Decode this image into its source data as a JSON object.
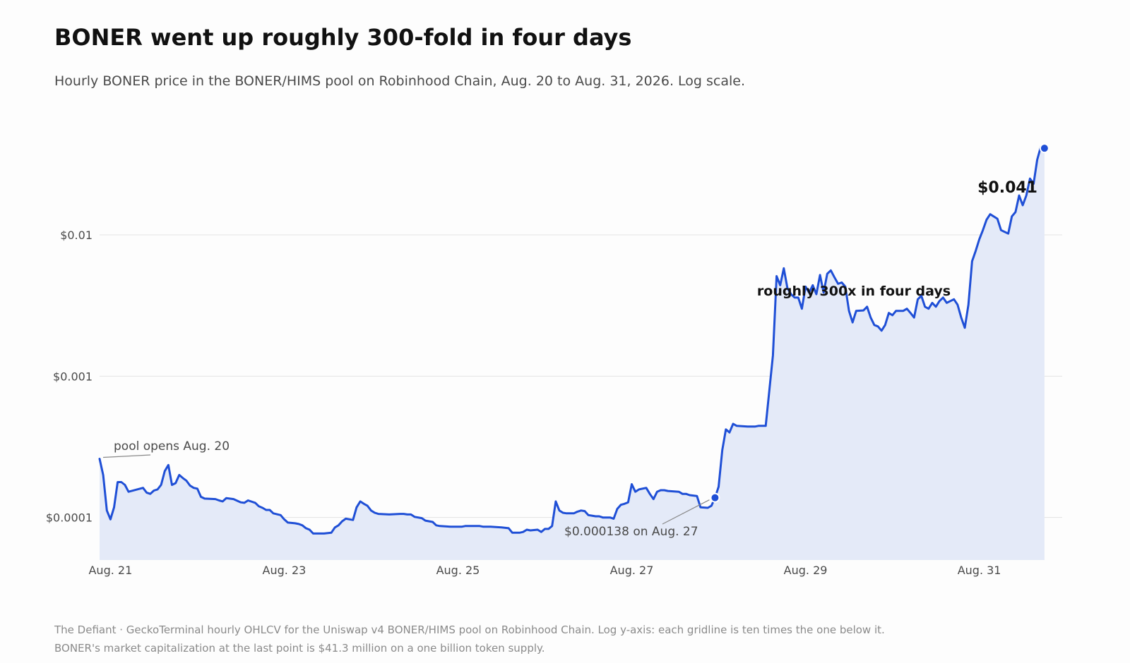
{
  "header": {
    "title": "BONER went up roughly 300-fold in four days",
    "subtitle": "Hourly BONER price in the BONER/HIMS pool on Robinhood Chain, Aug. 20 to Aug. 31, 2026. Log scale."
  },
  "footer": {
    "line1": "The Defiant · GeckoTerminal hourly OHLCV for the Uniswap v4 BONER/HIMS pool on Robinhood Chain. Log y-axis: each gridline is ten times the one below it.",
    "line2": "BONER's market capitalization at the last point is $41.3 million on a one billion token supply."
  },
  "colors": {
    "line": "#1f4fd6",
    "area": "#e4eaf8",
    "grid": "#e3e3e3",
    "annotation_line": "#888888"
  },
  "chart_data": {
    "type": "line",
    "title": "BONER went up roughly 300-fold in four days",
    "xlabel": "",
    "ylabel": "",
    "y_scale": "log",
    "grid": true,
    "area_fill": true,
    "legend": "none",
    "xlim": [
      "2026-08-20T21:00",
      "2026-08-31T19:00"
    ],
    "ylim": [
      5e-05,
      0.08
    ],
    "y_ticks": [
      {
        "value": 0.0001,
        "label": "$0.0001"
      },
      {
        "value": 0.001,
        "label": "$0.001"
      },
      {
        "value": 0.01,
        "label": "$0.01"
      }
    ],
    "x_ticks": [
      {
        "value": "2026-08-21T00:00",
        "label": "Aug. 21"
      },
      {
        "value": "2026-08-23T00:00",
        "label": "Aug. 23"
      },
      {
        "value": "2026-08-25T00:00",
        "label": "Aug. 25"
      },
      {
        "value": "2026-08-27T00:00",
        "label": "Aug. 27"
      },
      {
        "value": "2026-08-29T00:00",
        "label": "Aug. 29"
      },
      {
        "value": "2026-08-31T00:00",
        "label": "Aug. 31"
      }
    ],
    "series": [
      {
        "points": [
          [
            "2026-08-20T21:00",
            0.00026
          ],
          [
            "2026-08-20T22:00",
            0.0002
          ],
          [
            "2026-08-20T23:00",
            0.000112
          ],
          [
            "2026-08-21T00:00",
            9.7e-05
          ],
          [
            "2026-08-21T01:00",
            0.000118
          ],
          [
            "2026-08-21T02:00",
            0.000178
          ],
          [
            "2026-08-21T03:00",
            0.000178
          ],
          [
            "2026-08-21T04:00",
            0.00017
          ],
          [
            "2026-08-21T05:00",
            0.000152
          ],
          [
            "2026-08-21T07:00",
            0.000157
          ],
          [
            "2026-08-21T09:00",
            0.000162
          ],
          [
            "2026-08-21T10:00",
            0.00015
          ],
          [
            "2026-08-21T11:00",
            0.000147
          ],
          [
            "2026-08-21T12:00",
            0.000155
          ],
          [
            "2026-08-21T13:00",
            0.000158
          ],
          [
            "2026-08-21T14:00",
            0.00017
          ],
          [
            "2026-08-21T15:00",
            0.000213
          ],
          [
            "2026-08-21T16:00",
            0.000235
          ],
          [
            "2026-08-21T17:00",
            0.00017
          ],
          [
            "2026-08-21T18:00",
            0.000175
          ],
          [
            "2026-08-21T19:00",
            0.0002
          ],
          [
            "2026-08-21T20:00",
            0.00019
          ],
          [
            "2026-08-21T21:00",
            0.000182
          ],
          [
            "2026-08-21T22:00",
            0.000168
          ],
          [
            "2026-08-21T23:00",
            0.000162
          ],
          [
            "2026-08-22T00:00",
            0.00016
          ],
          [
            "2026-08-22T01:00",
            0.00014
          ],
          [
            "2026-08-22T02:00",
            0.000136
          ],
          [
            "2026-08-22T05:00",
            0.000135
          ],
          [
            "2026-08-22T06:00",
            0.000132
          ],
          [
            "2026-08-22T07:00",
            0.00013
          ],
          [
            "2026-08-22T08:00",
            0.000137
          ],
          [
            "2026-08-22T10:00",
            0.000135
          ],
          [
            "2026-08-22T12:00",
            0.000128
          ],
          [
            "2026-08-22T13:00",
            0.000127
          ],
          [
            "2026-08-22T14:00",
            0.000132
          ],
          [
            "2026-08-22T16:00",
            0.000127
          ],
          [
            "2026-08-22T17:00",
            0.00012
          ],
          [
            "2026-08-22T18:00",
            0.000117
          ],
          [
            "2026-08-22T19:00",
            0.000113
          ],
          [
            "2026-08-22T20:00",
            0.000113
          ],
          [
            "2026-08-22T21:00",
            0.000107
          ],
          [
            "2026-08-22T23:00",
            0.000104
          ],
          [
            "2026-08-23T00:00",
            9.7e-05
          ],
          [
            "2026-08-23T01:00",
            9.2e-05
          ],
          [
            "2026-08-23T03:00",
            9.1e-05
          ],
          [
            "2026-08-23T04:00",
            9e-05
          ],
          [
            "2026-08-23T05:00",
            8.8e-05
          ],
          [
            "2026-08-23T06:00",
            8.4e-05
          ],
          [
            "2026-08-23T07:00",
            8.2e-05
          ],
          [
            "2026-08-23T08:00",
            7.7e-05
          ],
          [
            "2026-08-23T11:00",
            7.7e-05
          ],
          [
            "2026-08-23T13:00",
            7.8e-05
          ],
          [
            "2026-08-23T14:00",
            8.5e-05
          ],
          [
            "2026-08-23T15:00",
            8.8e-05
          ],
          [
            "2026-08-23T16:00",
            9.4e-05
          ],
          [
            "2026-08-23T17:00",
            9.8e-05
          ],
          [
            "2026-08-23T19:00",
            9.6e-05
          ],
          [
            "2026-08-23T20:00",
            0.000118
          ],
          [
            "2026-08-23T21:00",
            0.00013
          ],
          [
            "2026-08-23T22:00",
            0.000125
          ],
          [
            "2026-08-23T23:00",
            0.000121
          ],
          [
            "2026-08-24T00:00",
            0.000112
          ],
          [
            "2026-08-24T01:00",
            0.000108
          ],
          [
            "2026-08-24T02:00",
            0.000106
          ],
          [
            "2026-08-24T05:00",
            0.000105
          ],
          [
            "2026-08-24T08:00",
            0.000106
          ],
          [
            "2026-08-24T09:00",
            0.000106
          ],
          [
            "2026-08-24T10:00",
            0.000105
          ],
          [
            "2026-08-24T11:00",
            0.000105
          ],
          [
            "2026-08-24T12:00",
            0.000101
          ],
          [
            "2026-08-24T14:00",
            9.9e-05
          ],
          [
            "2026-08-24T15:00",
            9.5e-05
          ],
          [
            "2026-08-24T17:00",
            9.3e-05
          ],
          [
            "2026-08-24T18:00",
            8.8e-05
          ],
          [
            "2026-08-24T19:00",
            8.7e-05
          ],
          [
            "2026-08-24T22:00",
            8.6e-05
          ],
          [
            "2026-08-25T01:00",
            8.6e-05
          ],
          [
            "2026-08-25T02:00",
            8.7e-05
          ],
          [
            "2026-08-25T03:00",
            8.7e-05
          ],
          [
            "2026-08-25T06:00",
            8.7e-05
          ],
          [
            "2026-08-25T07:00",
            8.6e-05
          ],
          [
            "2026-08-25T09:00",
            8.6e-05
          ],
          [
            "2026-08-25T12:00",
            8.5e-05
          ],
          [
            "2026-08-25T14:00",
            8.4e-05
          ],
          [
            "2026-08-25T15:00",
            7.8e-05
          ],
          [
            "2026-08-25T17:00",
            7.8e-05
          ],
          [
            "2026-08-25T18:00",
            7.9e-05
          ],
          [
            "2026-08-25T19:00",
            8.2e-05
          ],
          [
            "2026-08-25T20:00",
            8.1e-05
          ],
          [
            "2026-08-25T22:00",
            8.2e-05
          ],
          [
            "2026-08-25T23:00",
            7.9e-05
          ],
          [
            "2026-08-26T00:00",
            8.3e-05
          ],
          [
            "2026-08-26T01:00",
            8.3e-05
          ],
          [
            "2026-08-26T02:00",
            8.7e-05
          ],
          [
            "2026-08-26T03:00",
            0.00013
          ],
          [
            "2026-08-26T04:00",
            0.000112
          ],
          [
            "2026-08-26T05:00",
            0.000108
          ],
          [
            "2026-08-26T06:00",
            0.000107
          ],
          [
            "2026-08-26T08:00",
            0.000107
          ],
          [
            "2026-08-26T09:00",
            0.00011
          ],
          [
            "2026-08-26T10:00",
            0.000112
          ],
          [
            "2026-08-26T11:00",
            0.000111
          ],
          [
            "2026-08-26T12:00",
            0.000104
          ],
          [
            "2026-08-26T13:00",
            0.000103
          ],
          [
            "2026-08-26T14:00",
            0.000102
          ],
          [
            "2026-08-26T15:00",
            0.000102
          ],
          [
            "2026-08-26T16:00",
            0.0001
          ],
          [
            "2026-08-26T18:00",
            0.0001
          ],
          [
            "2026-08-26T19:00",
            9.8e-05
          ],
          [
            "2026-08-26T20:00",
            0.000115
          ],
          [
            "2026-08-26T21:00",
            0.000123
          ],
          [
            "2026-08-26T22:00",
            0.000125
          ],
          [
            "2026-08-26T23:00",
            0.000128
          ],
          [
            "2026-08-27T00:00",
            0.000172
          ],
          [
            "2026-08-27T01:00",
            0.000152
          ],
          [
            "2026-08-27T02:00",
            0.000158
          ],
          [
            "2026-08-27T04:00",
            0.000162
          ],
          [
            "2026-08-27T05:00",
            0.000147
          ],
          [
            "2026-08-27T06:00",
            0.000135
          ],
          [
            "2026-08-27T07:00",
            0.000152
          ],
          [
            "2026-08-27T08:00",
            0.000156
          ],
          [
            "2026-08-27T09:00",
            0.000156
          ],
          [
            "2026-08-27T10:00",
            0.000154
          ],
          [
            "2026-08-27T13:00",
            0.000152
          ],
          [
            "2026-08-27T14:00",
            0.000147
          ],
          [
            "2026-08-27T15:00",
            0.000147
          ],
          [
            "2026-08-27T16:00",
            0.000144
          ],
          [
            "2026-08-27T18:00",
            0.000142
          ],
          [
            "2026-08-27T19:00",
            0.000118
          ],
          [
            "2026-08-27T21:00",
            0.000117
          ],
          [
            "2026-08-27T22:00",
            0.000121
          ],
          [
            "2026-08-27T23:00",
            0.000138
          ],
          [
            "2026-08-28T00:00",
            0.000165
          ],
          [
            "2026-08-28T01:00",
            0.0003
          ],
          [
            "2026-08-28T02:00",
            0.00042
          ],
          [
            "2026-08-28T03:00",
            0.0004
          ],
          [
            "2026-08-28T04:00",
            0.00046
          ],
          [
            "2026-08-28T05:00",
            0.000445
          ],
          [
            "2026-08-28T08:00",
            0.00044
          ],
          [
            "2026-08-28T10:00",
            0.00044
          ],
          [
            "2026-08-28T11:00",
            0.000445
          ],
          [
            "2026-08-28T13:00",
            0.000445
          ],
          [
            "2026-08-28T15:00",
            0.0014
          ],
          [
            "2026-08-28T16:00",
            0.0051
          ],
          [
            "2026-08-28T17:00",
            0.0044
          ],
          [
            "2026-08-28T18:00",
            0.0058
          ],
          [
            "2026-08-28T19:00",
            0.0042
          ],
          [
            "2026-08-28T20:00",
            0.0038
          ],
          [
            "2026-08-28T21:00",
            0.0036
          ],
          [
            "2026-08-28T22:00",
            0.0036
          ],
          [
            "2026-08-28T23:00",
            0.003
          ],
          [
            "2026-08-29T00:00",
            0.0043
          ],
          [
            "2026-08-29T01:00",
            0.0039
          ],
          [
            "2026-08-29T02:00",
            0.0044
          ],
          [
            "2026-08-29T03:00",
            0.0038
          ],
          [
            "2026-08-29T04:00",
            0.0052
          ],
          [
            "2026-08-29T05:00",
            0.0039
          ],
          [
            "2026-08-29T06:00",
            0.0053
          ],
          [
            "2026-08-29T07:00",
            0.0056
          ],
          [
            "2026-08-29T08:00",
            0.005
          ],
          [
            "2026-08-29T09:00",
            0.0045
          ],
          [
            "2026-08-29T10:00",
            0.0046
          ],
          [
            "2026-08-29T11:00",
            0.0043
          ],
          [
            "2026-08-29T12:00",
            0.0029
          ],
          [
            "2026-08-29T13:00",
            0.0024
          ],
          [
            "2026-08-29T14:00",
            0.0029
          ],
          [
            "2026-08-29T16:00",
            0.00292
          ],
          [
            "2026-08-29T17:00",
            0.0031
          ],
          [
            "2026-08-29T18:00",
            0.0026
          ],
          [
            "2026-08-29T19:00",
            0.0023
          ],
          [
            "2026-08-29T20:00",
            0.00225
          ],
          [
            "2026-08-29T21:00",
            0.0021
          ],
          [
            "2026-08-29T22:00",
            0.0023
          ],
          [
            "2026-08-29T23:00",
            0.0028
          ],
          [
            "2026-08-30T00:00",
            0.0027
          ],
          [
            "2026-08-30T01:00",
            0.0029
          ],
          [
            "2026-08-30T03:00",
            0.0029
          ],
          [
            "2026-08-30T04:00",
            0.003
          ],
          [
            "2026-08-30T05:00",
            0.0028
          ],
          [
            "2026-08-30T06:00",
            0.0026
          ],
          [
            "2026-08-30T07:00",
            0.0035
          ],
          [
            "2026-08-30T08:00",
            0.0037
          ],
          [
            "2026-08-30T09:00",
            0.0031
          ],
          [
            "2026-08-30T10:00",
            0.003
          ],
          [
            "2026-08-30T11:00",
            0.0033
          ],
          [
            "2026-08-30T12:00",
            0.0031
          ],
          [
            "2026-08-30T13:00",
            0.0034
          ],
          [
            "2026-08-30T14:00",
            0.0036
          ],
          [
            "2026-08-30T15:00",
            0.0033
          ],
          [
            "2026-08-30T17:00",
            0.0035
          ],
          [
            "2026-08-30T18:00",
            0.0032
          ],
          [
            "2026-08-30T19:00",
            0.0026
          ],
          [
            "2026-08-30T20:00",
            0.0022
          ],
          [
            "2026-08-30T21:00",
            0.0032
          ],
          [
            "2026-08-30T22:00",
            0.0065
          ],
          [
            "2026-08-30T23:00",
            0.0077
          ],
          [
            "2026-08-31T00:00",
            0.0093
          ],
          [
            "2026-08-31T01:00",
            0.0108
          ],
          [
            "2026-08-31T02:00",
            0.0128
          ],
          [
            "2026-08-31T03:00",
            0.014
          ],
          [
            "2026-08-31T05:00",
            0.013
          ],
          [
            "2026-08-31T06:00",
            0.0108
          ],
          [
            "2026-08-31T08:00",
            0.0102
          ],
          [
            "2026-08-31T09:00",
            0.0135
          ],
          [
            "2026-08-31T10:00",
            0.0145
          ],
          [
            "2026-08-31T11:00",
            0.019
          ],
          [
            "2026-08-31T12:00",
            0.0162
          ],
          [
            "2026-08-31T13:00",
            0.019
          ],
          [
            "2026-08-31T14:00",
            0.025
          ],
          [
            "2026-08-31T15:00",
            0.023
          ],
          [
            "2026-08-31T16:00",
            0.034
          ],
          [
            "2026-08-31T17:00",
            0.042
          ],
          [
            "2026-08-31T18:00",
            0.041
          ]
        ]
      }
    ],
    "markers": [
      {
        "x": "2026-08-27T23:00",
        "y": 0.000138
      },
      {
        "x": "2026-08-31T18:00",
        "y": 0.041
      }
    ],
    "annotations": [
      {
        "text": "pool opens Aug. 20",
        "x": "2026-08-20T21:00",
        "y": 0.00026,
        "style": "plain",
        "leader": true
      },
      {
        "text": "$0.000138 on Aug. 27",
        "x": "2026-08-27T23:00",
        "y": 0.000138,
        "style": "plain",
        "leader": true
      },
      {
        "text": "roughly 300x in four days",
        "x": "2026-08-29T12:00",
        "y": 0.0075,
        "style": "bold",
        "leader": false
      },
      {
        "text": "$0.041",
        "x": "2026-08-31T18:00",
        "y": 0.041,
        "style": "end",
        "leader": false
      }
    ]
  }
}
